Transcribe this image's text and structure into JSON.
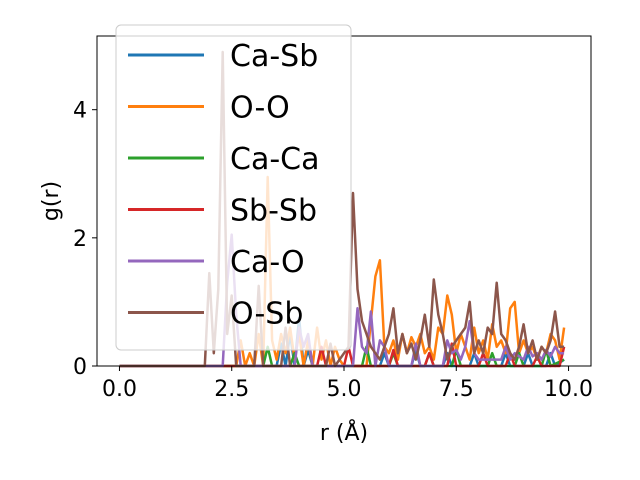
{
  "chart_data": {
    "type": "line",
    "title": "",
    "xlabel": "r (Å)",
    "ylabel": "g(r)",
    "xlim": [
      -0.5,
      10.5
    ],
    "ylim": [
      0,
      5.15
    ],
    "x_ticks": [
      0.0,
      2.5,
      5.0,
      7.5,
      10.0
    ],
    "x_tick_labels": [
      "0.0",
      "2.5",
      "5.0",
      "7.5",
      "10.0"
    ],
    "y_ticks": [
      0,
      2,
      4
    ],
    "y_tick_labels": [
      "0",
      "2",
      "4"
    ],
    "grid": false,
    "legend_position": "upper-left",
    "series": [
      {
        "name": "Ca-Sb",
        "color": "#1f77b4",
        "x": [
          0,
          3.5,
          3.6,
          3.7,
          3.8,
          3.9,
          4.0,
          4.1,
          4.2,
          4.3,
          5.8,
          5.9,
          6.0,
          6.5,
          6.6,
          6.7,
          7.2,
          7.3,
          7.4,
          7.8,
          7.9,
          8.0,
          8.5,
          8.6,
          8.7,
          9.0,
          9.1,
          9.2,
          9.5,
          9.6,
          9.7,
          9.9
        ],
        "y": [
          0,
          0,
          0.35,
          0,
          0.5,
          0,
          0.75,
          0,
          0.25,
          0,
          0,
          0.2,
          0,
          0,
          0.25,
          0,
          0,
          0.2,
          0,
          0,
          0.2,
          0,
          0,
          0.2,
          0,
          0,
          0.2,
          0,
          0,
          0.2,
          0,
          0.1
        ]
      },
      {
        "name": "O-O",
        "color": "#ff7f0e",
        "x": [
          0,
          2.6,
          2.7,
          2.8,
          2.9,
          3.0,
          3.1,
          3.2,
          3.3,
          3.4,
          3.5,
          3.6,
          3.7,
          3.8,
          3.9,
          4.0,
          4.1,
          4.2,
          4.3,
          4.4,
          4.5,
          4.6,
          4.7,
          4.8,
          4.9,
          5.0,
          5.5,
          5.6,
          5.7,
          5.8,
          5.9,
          6.0,
          6.1,
          6.2,
          6.3,
          6.4,
          6.5,
          6.6,
          6.7,
          6.8,
          6.9,
          7.0,
          7.1,
          7.2,
          7.3,
          7.4,
          7.5,
          7.6,
          7.7,
          7.8,
          7.9,
          8.0,
          8.1,
          8.2,
          8.3,
          8.4,
          8.5,
          8.6,
          8.7,
          8.8,
          8.9,
          9.0,
          9.1,
          9.2,
          9.3,
          9.4,
          9.5,
          9.6,
          9.7,
          9.8,
          9.9
        ],
        "y": [
          0,
          0,
          0.4,
          0,
          0.2,
          0,
          0.5,
          0,
          2.95,
          0.4,
          0.1,
          0.5,
          0.2,
          0.6,
          0.1,
          0.5,
          0,
          0.4,
          0,
          0.6,
          0.1,
          0.4,
          0,
          0.3,
          0.1,
          0,
          0,
          0.7,
          1.4,
          1.65,
          0.3,
          0.2,
          0.4,
          0.1,
          0.5,
          0.2,
          0.45,
          0.3,
          0.5,
          0.2,
          0.3,
          0.1,
          0.6,
          0.5,
          1.1,
          0.8,
          0.2,
          0.5,
          0.3,
          0.1,
          0.6,
          0.2,
          0.4,
          0.1,
          0.65,
          0.3,
          0.4,
          0.2,
          0.9,
          1.0,
          0.2,
          0.4,
          0.2,
          0.3,
          0.1,
          0.3,
          0.2,
          0.5,
          0.4,
          0.1,
          0.6
        ]
      },
      {
        "name": "Ca-Ca",
        "color": "#2ca02c",
        "x": [
          0,
          3.2,
          3.3,
          3.4,
          3.8,
          3.9,
          4.0,
          5.4,
          5.5,
          5.6,
          6.0,
          6.1,
          6.2,
          6.8,
          6.9,
          7.0,
          7.4,
          7.5,
          7.6,
          8.2,
          8.3,
          8.4,
          8.8,
          8.9,
          9.0,
          9.4,
          9.5,
          9.6,
          9.9
        ],
        "y": [
          0,
          0,
          0.3,
          0,
          0,
          0.2,
          0,
          0,
          0.3,
          0,
          0,
          0.2,
          0,
          0,
          0.2,
          0,
          0,
          0.25,
          0,
          0,
          0.2,
          0,
          0,
          0.2,
          0,
          0,
          0.25,
          0,
          0.1
        ]
      },
      {
        "name": "Sb-Sb",
        "color": "#d62728",
        "x": [
          0,
          4.4,
          4.5,
          4.6,
          5.0,
          5.1,
          5.2,
          6.0,
          6.1,
          6.2,
          6.8,
          6.9,
          7.0,
          7.3,
          7.4,
          7.5,
          8.0,
          8.1,
          8.2,
          8.6,
          8.7,
          8.8,
          9.2,
          9.3,
          9.4,
          9.8,
          9.9
        ],
        "y": [
          0,
          0,
          0.3,
          0,
          0,
          0.3,
          0,
          0,
          0.25,
          0,
          0,
          0.2,
          0,
          0,
          0.35,
          0,
          0,
          0.2,
          0,
          0,
          0.2,
          0,
          0,
          0.15,
          0,
          0,
          0.3
        ]
      },
      {
        "name": "Ca-O",
        "color": "#9467bd",
        "x": [
          0,
          2.3,
          2.4,
          2.5,
          2.6,
          2.7,
          3.9,
          4.0,
          4.1,
          4.2,
          4.3,
          5.2,
          5.3,
          5.4,
          5.5,
          5.6,
          5.7,
          5.8,
          5.9,
          6.0,
          6.5,
          6.6,
          6.7,
          7.2,
          7.3,
          7.4,
          7.5,
          7.6,
          7.7,
          7.8,
          7.9,
          8.0,
          8.5,
          8.6,
          8.7,
          8.8,
          9.0,
          9.1,
          9.2,
          9.3,
          9.4,
          9.5,
          9.6,
          9.7,
          9.8,
          9.9
        ],
        "y": [
          0,
          0,
          1.3,
          2.05,
          0.8,
          0,
          0,
          0.6,
          0.3,
          0.5,
          0,
          0,
          0.9,
          0.3,
          0.2,
          0.85,
          0,
          0.4,
          0.3,
          0,
          0,
          0.35,
          0,
          0,
          0.4,
          0.2,
          0.25,
          0.1,
          0.3,
          0.7,
          0.2,
          0.1,
          0.1,
          0.3,
          0.1,
          0.2,
          0.1,
          0.3,
          0.15,
          0.2,
          0.1,
          0.25,
          0.15,
          0.3,
          0.2,
          0.2
        ]
      },
      {
        "name": "O-Sb",
        "color": "#8c564b",
        "x": [
          0,
          1.9,
          2.0,
          2.1,
          2.2,
          2.3,
          2.4,
          2.5,
          2.6,
          3.0,
          3.1,
          3.2,
          3.6,
          3.7,
          3.8,
          4.6,
          4.7,
          4.8,
          5.1,
          5.2,
          5.3,
          5.4,
          5.5,
          5.6,
          5.7,
          5.8,
          5.9,
          6.0,
          6.1,
          6.2,
          6.3,
          6.4,
          6.5,
          6.6,
          6.7,
          6.8,
          6.9,
          7.0,
          7.1,
          7.2,
          7.3,
          7.4,
          7.5,
          7.6,
          7.7,
          7.8,
          7.9,
          8.0,
          8.1,
          8.2,
          8.3,
          8.4,
          8.5,
          8.6,
          8.7,
          8.8,
          8.9,
          9.0,
          9.1,
          9.2,
          9.3,
          9.4,
          9.5,
          9.6,
          9.7,
          9.8,
          9.9
        ],
        "y": [
          0,
          0,
          1.45,
          0.2,
          1.2,
          4.9,
          0.5,
          1.1,
          0,
          0,
          1.25,
          0,
          0,
          0.6,
          0,
          0,
          0.35,
          0,
          0.3,
          2.7,
          1.2,
          0.7,
          0.5,
          0.3,
          0.2,
          0.1,
          0.3,
          0.5,
          0.9,
          0.2,
          0.5,
          0.2,
          0.35,
          0.1,
          0.4,
          0.8,
          0.3,
          1.35,
          0.8,
          0.5,
          0.1,
          0.3,
          0.4,
          0.5,
          0.6,
          1.0,
          0.2,
          0.4,
          0.2,
          0.6,
          0.5,
          1.3,
          0.5,
          0.4,
          0.2,
          0.1,
          0.3,
          0.65,
          0.2,
          0.4,
          0.1,
          0.3,
          0.2,
          0.4,
          0.85,
          0.3,
          0.3
        ]
      }
    ]
  }
}
